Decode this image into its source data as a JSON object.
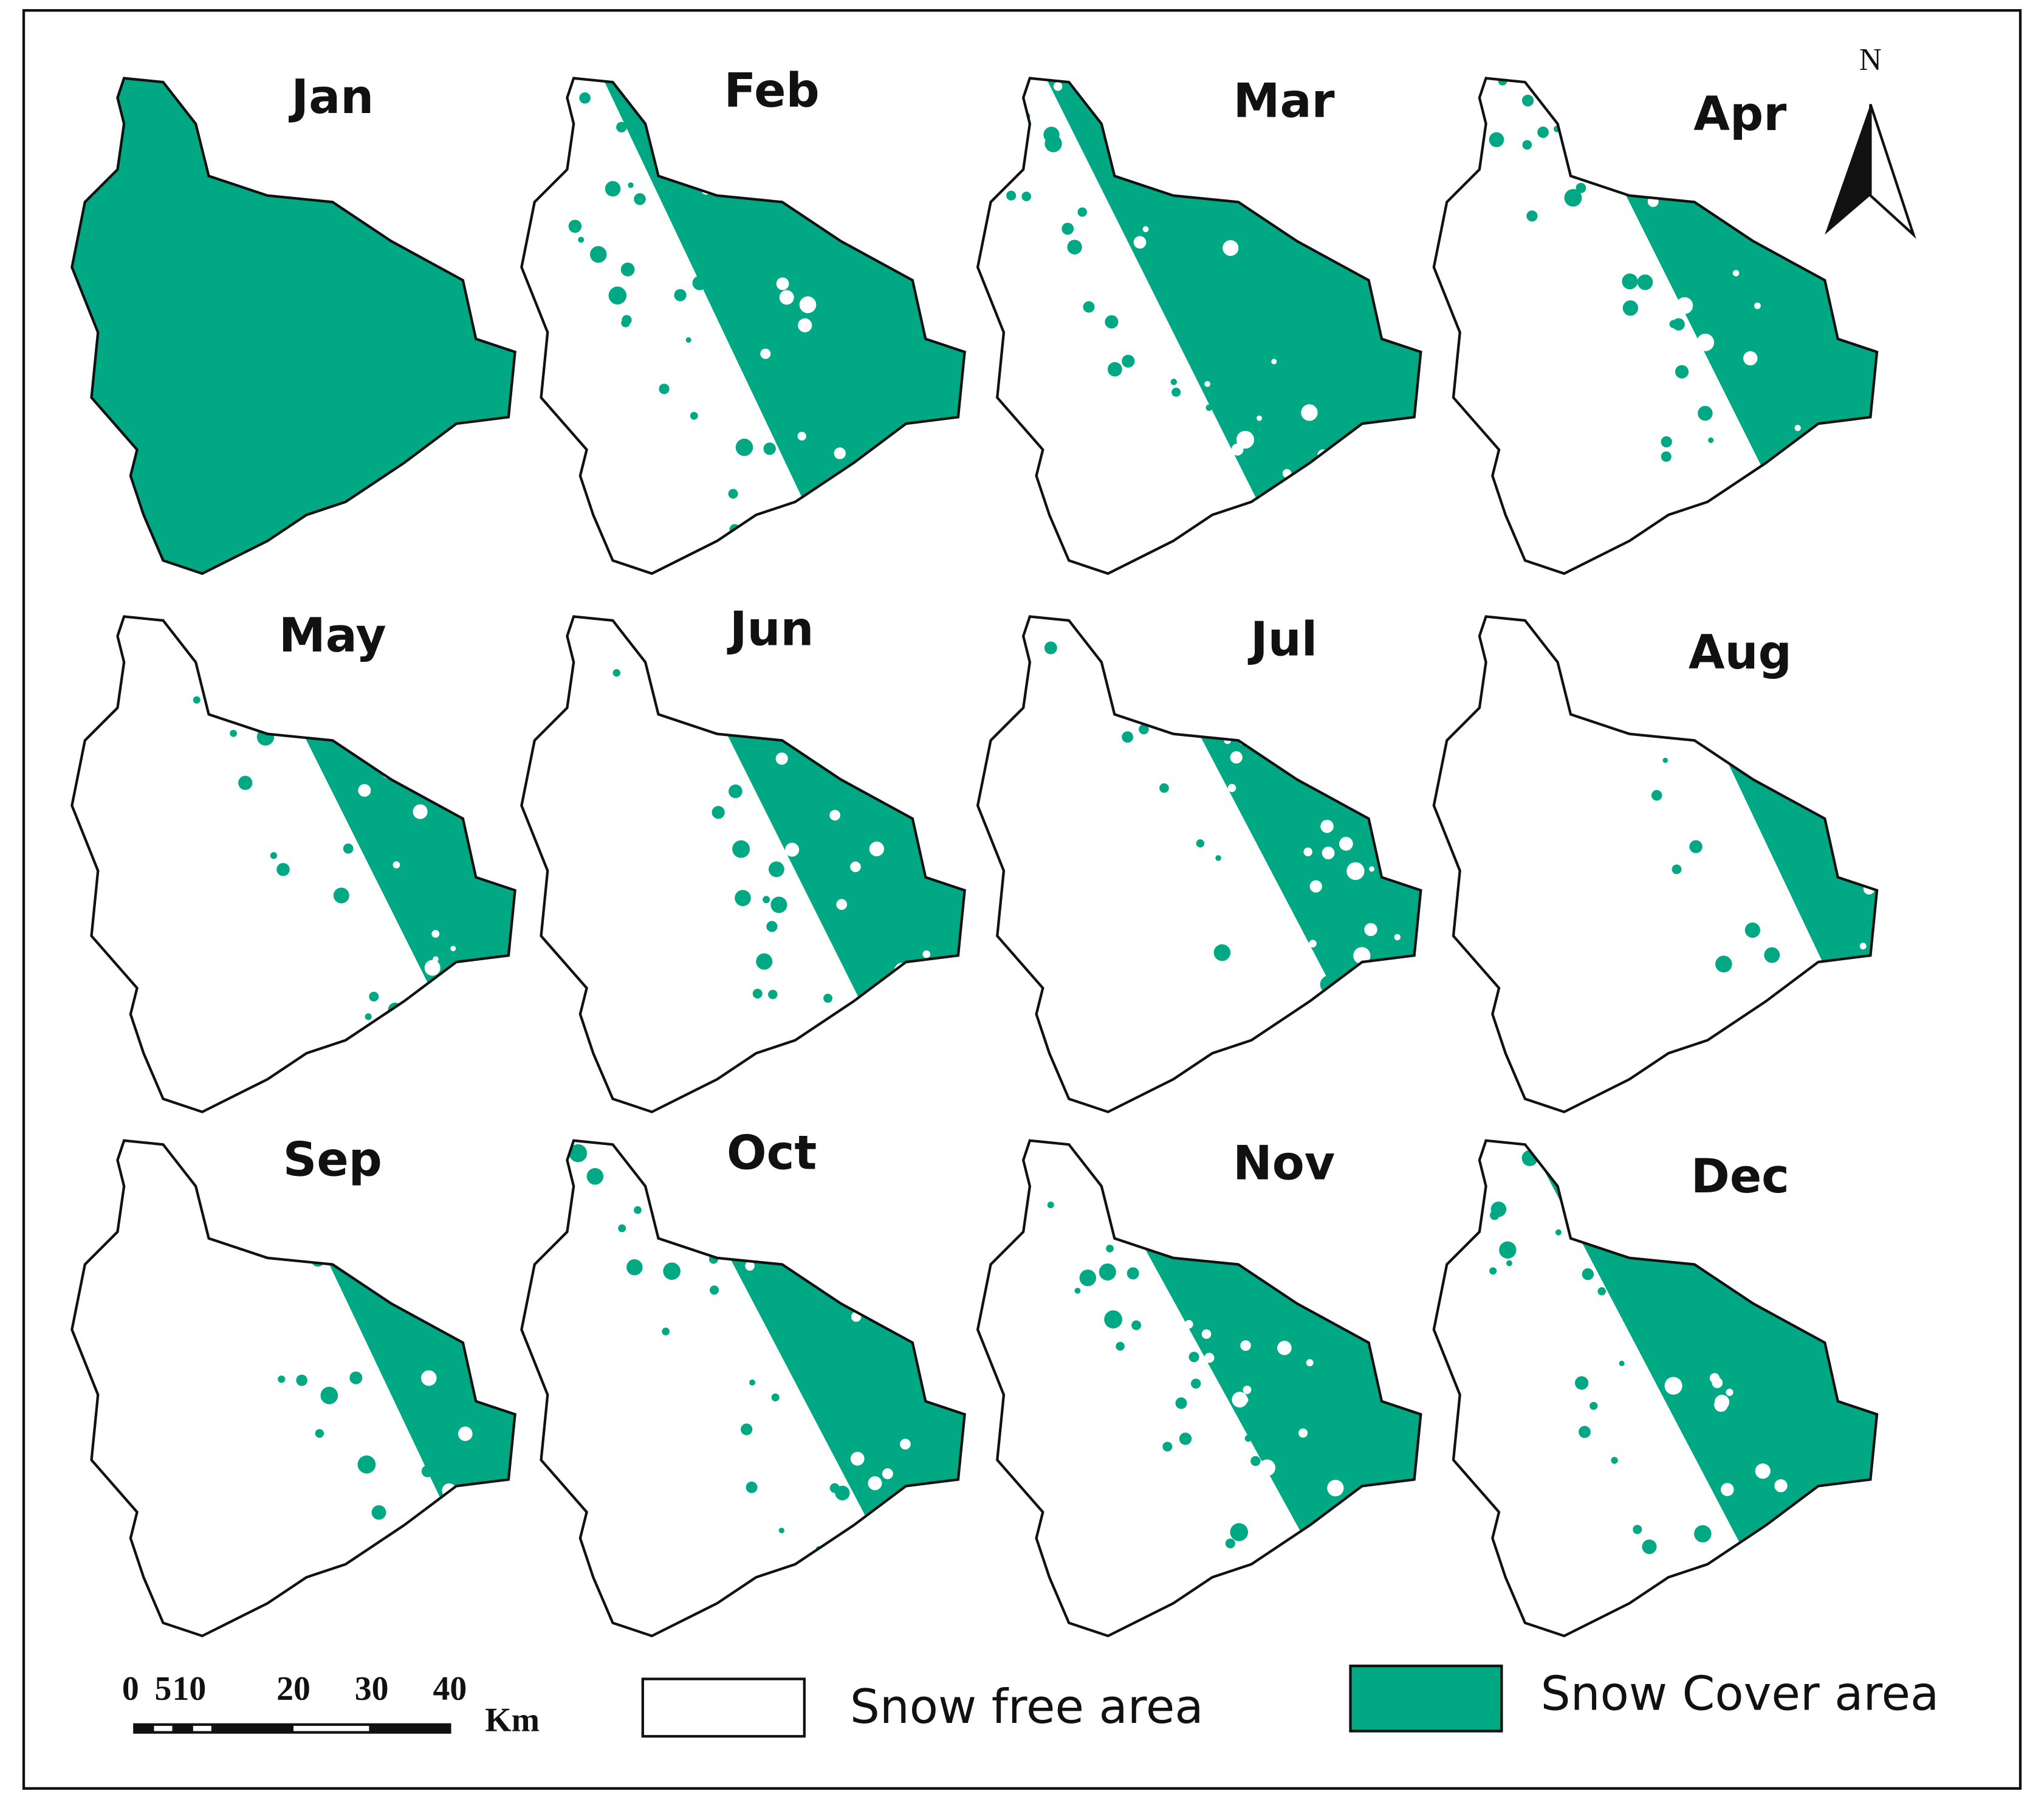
{
  "panels": [
    {
      "label": "Jan"
    },
    {
      "label": "Feb"
    },
    {
      "label": "Mar"
    },
    {
      "label": "Apr"
    },
    {
      "label": "May"
    },
    {
      "label": "Jun"
    },
    {
      "label": "Jul"
    },
    {
      "label": "Aug"
    },
    {
      "label": "Sep"
    },
    {
      "label": "Oct"
    },
    {
      "label": "Nov"
    },
    {
      "label": "Dec"
    }
  ],
  "north_arrow": {
    "label": "N"
  },
  "scale_bar": {
    "labels": [
      "0",
      "5",
      "10",
      "20",
      "30",
      "40"
    ],
    "unit": "Km"
  },
  "legend": {
    "items": [
      {
        "label": "Snow free area"
      },
      {
        "label": "Snow Cover area"
      }
    ]
  }
}
